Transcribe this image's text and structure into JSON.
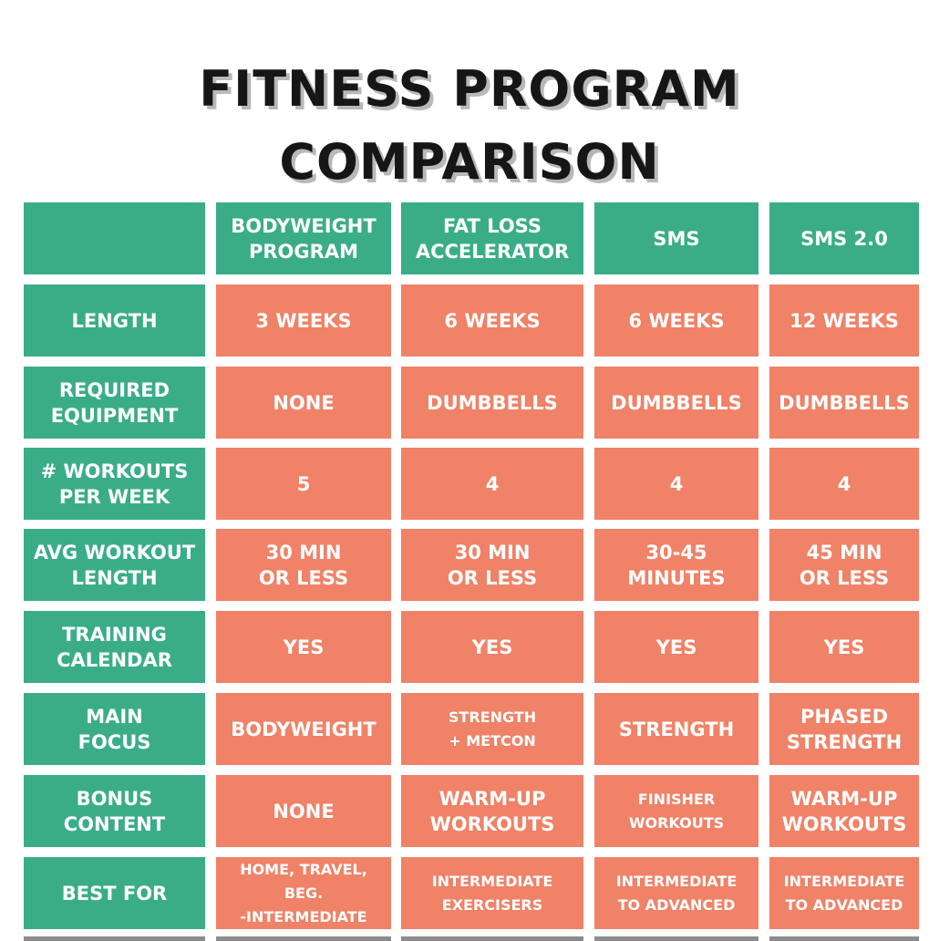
{
  "title": {
    "line1": "FITNESS PROGRAM",
    "line2": "COMPARISON"
  },
  "colors": {
    "green": "#3aad87",
    "orange": "#ef8267",
    "title_text": "#161616"
  },
  "programs": [
    "BODYWEIGHT\nPROGRAM",
    "FAT LOSS\nACCELERATOR",
    "SMS",
    "SMS 2.0"
  ],
  "rows": [
    {
      "label": "LENGTH",
      "values": [
        "3 WEEKS",
        "6 WEEKS",
        "6 WEEKS",
        "12 WEEKS"
      ]
    },
    {
      "label": "REQUIRED\nEQUIPMENT",
      "values": [
        "NONE",
        "DUMBBELLS",
        "DUMBBELLS",
        "DUMBBELLS"
      ]
    },
    {
      "label": "# WORKOUTS\nPER WEEK",
      "values": [
        "5",
        "4",
        "4",
        "4"
      ]
    },
    {
      "label": "AVG WORKOUT\nLENGTH",
      "values": [
        "30 MIN\nOR LESS",
        "30 MIN\nOR LESS",
        "30-45\nMINUTES",
        "45 MIN\nOR LESS"
      ]
    },
    {
      "label": "TRAINING\nCALENDAR",
      "values": [
        "YES",
        "YES",
        "YES",
        "YES"
      ]
    },
    {
      "label": "MAIN\nFOCUS",
      "values": [
        "BODYWEIGHT",
        "STRENGTH\n+ METCON",
        "STRENGTH",
        "PHASED\nSTRENGTH"
      ]
    },
    {
      "label": "BONUS\nCONTENT",
      "values": [
        "NONE",
        "WARM-UP\nWORKOUTS",
        "FINISHER\nWORKOUTS",
        "WARM-UP\nWORKOUTS"
      ]
    },
    {
      "label": "BEST FOR",
      "values": [
        "HOME, TRAVEL, BEG.\n-INTERMEDIATE",
        "INTERMEDIATE\nEXERCISERS",
        "INTERMEDIATE\nTO ADVANCED",
        "INTERMEDIATE\nTO ADVANCED"
      ]
    }
  ]
}
